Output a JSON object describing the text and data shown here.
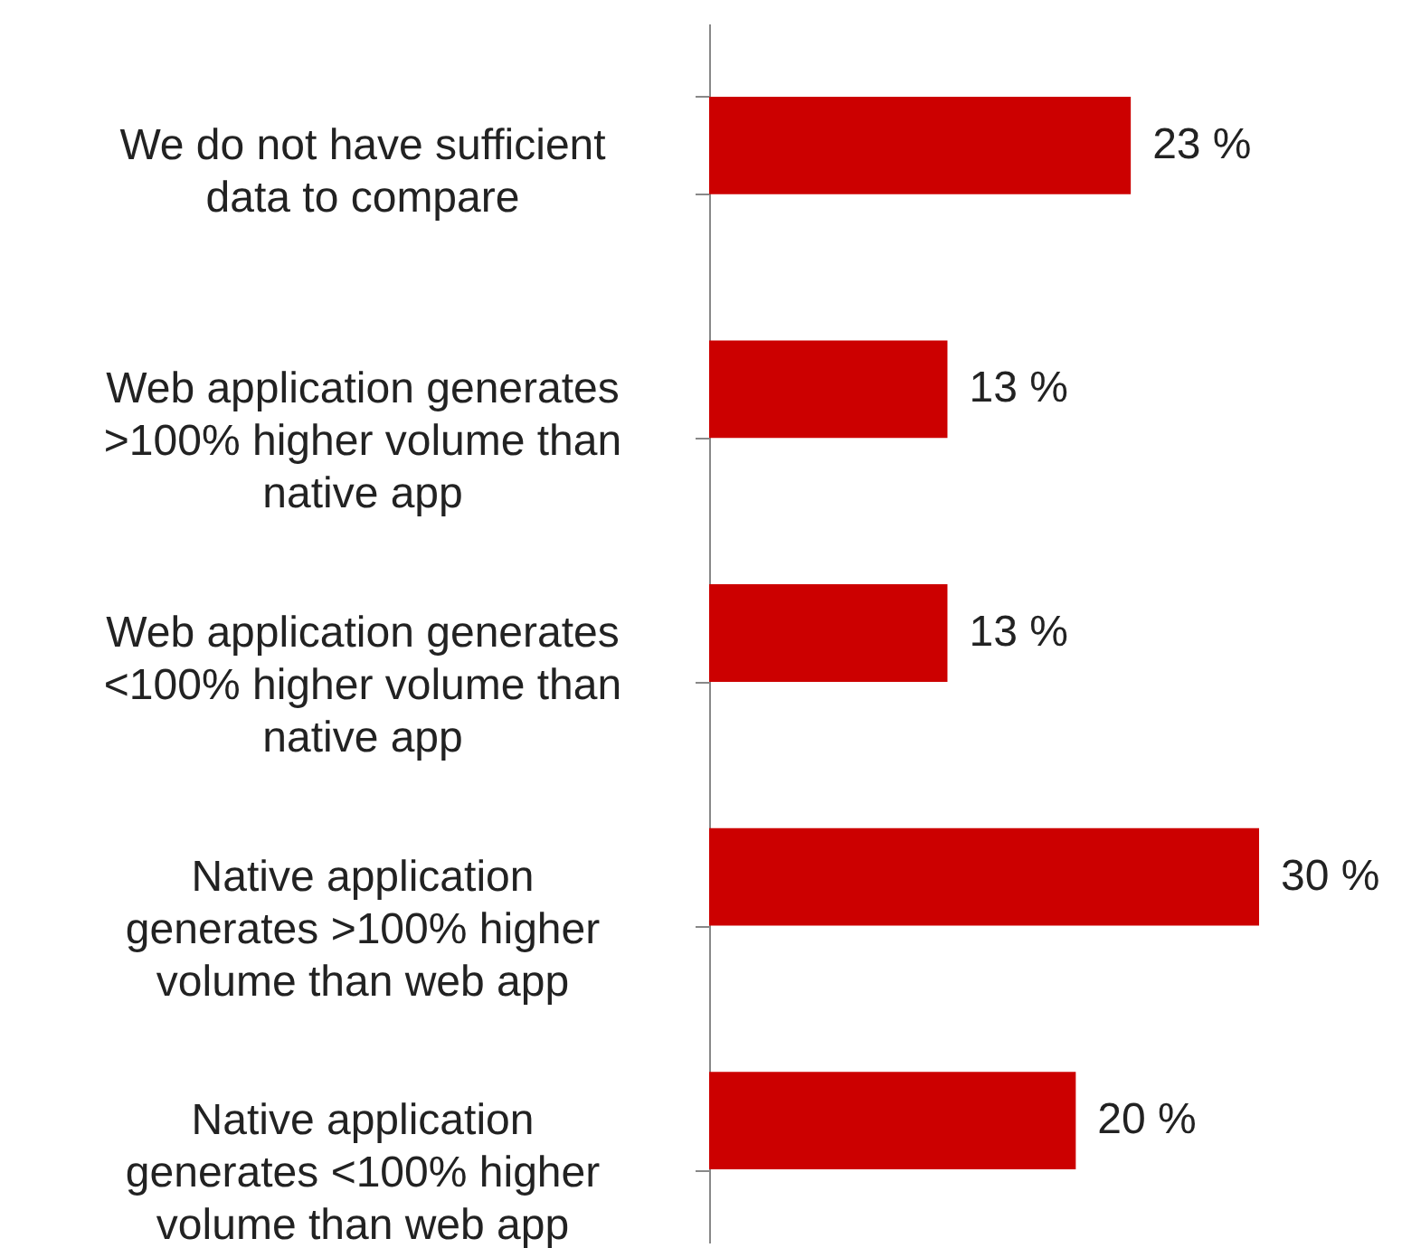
{
  "chart_data": {
    "type": "bar",
    "orientation": "horizontal",
    "categories": [
      "We do not have sufficient data to compare",
      "Web application generates >100% higher volume than native app",
      "Web application generates <100% higher volume than native app",
      "Native application generates >100% higher volume than web app",
      "Native application generates <100% higher volume than web app"
    ],
    "values": [
      23,
      13,
      13,
      30,
      20
    ],
    "value_labels": [
      "23 %",
      "13 %",
      "13 %",
      "30 %",
      "20 %"
    ],
    "color": "#cc0000"
  }
}
